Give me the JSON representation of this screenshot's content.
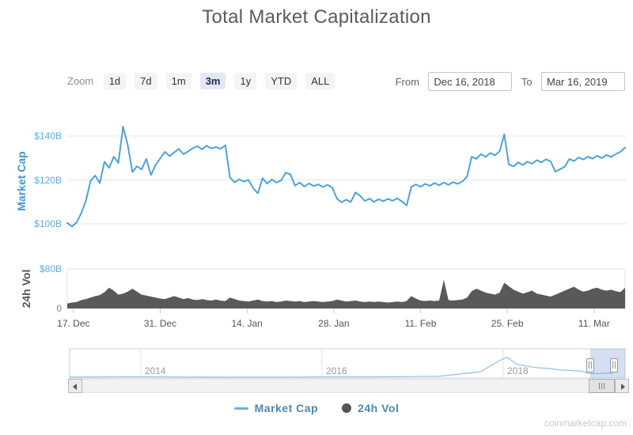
{
  "header": {
    "title": "Total Market Capitalization"
  },
  "controls": {
    "zoom_label": "Zoom",
    "zoom_buttons": [
      {
        "label": "1d",
        "selected": false
      },
      {
        "label": "7d",
        "selected": false
      },
      {
        "label": "1m",
        "selected": false
      },
      {
        "label": "3m",
        "selected": true
      },
      {
        "label": "1y",
        "selected": false
      },
      {
        "label": "YTD",
        "selected": false
      },
      {
        "label": "ALL",
        "selected": false
      }
    ],
    "from_label": "From",
    "from_value": "Dec 16, 2018",
    "to_label": "To",
    "to_value": "Mar 16, 2019"
  },
  "legend": {
    "items": [
      {
        "label": "Market Cap",
        "marker": "line",
        "color": "#6db0dd"
      },
      {
        "label": "24h Vol",
        "marker": "circle",
        "color": "#555555"
      }
    ]
  },
  "watermark": "coinmarketcap.com",
  "chart_data": {
    "type": "line",
    "title": "Total Market Capitalization",
    "x_range": {
      "from": "Dec 16, 2018",
      "to": "Mar 16, 2019",
      "days": 90,
      "sample_interval_days": 0.75
    },
    "x_ticks": [
      {
        "day": 1,
        "label": "17. Dec"
      },
      {
        "day": 15,
        "label": "31. Dec"
      },
      {
        "day": 29,
        "label": "14. Jan"
      },
      {
        "day": 43,
        "label": "28. Jan"
      },
      {
        "day": 57,
        "label": "11. Feb"
      },
      {
        "day": 71,
        "label": "25. Feb"
      },
      {
        "day": 85,
        "label": "11. Mar"
      }
    ],
    "series": [
      {
        "name": "Market Cap",
        "type": "line",
        "color": "#4da3d8",
        "axis": {
          "title": "Market Cap",
          "unit": "$B",
          "ylim": [
            97,
            146
          ],
          "ticks": [
            {
              "value": 100,
              "label": "$100B"
            },
            {
              "value": 120,
              "label": "$120B"
            },
            {
              "value": 140,
              "label": "$140B"
            }
          ]
        },
        "values_billions": [
          100.4,
          98.8,
          100.6,
          104.8,
          110.5,
          119.5,
          122.0,
          118.6,
          128.3,
          125.5,
          130.6,
          127.8,
          144.3,
          136.0,
          123.6,
          126.2,
          124.8,
          129.6,
          122.2,
          126.8,
          129.8,
          132.8,
          130.9,
          132.5,
          134.2,
          131.7,
          133.0,
          134.5,
          135.3,
          134.0,
          135.6,
          134.3,
          135.0,
          134.2,
          135.8,
          121.2,
          118.9,
          120.3,
          119.2,
          120.0,
          116.2,
          113.9,
          120.8,
          118.3,
          120.2,
          118.8,
          119.8,
          123.3,
          122.6,
          117.4,
          118.8,
          117.0,
          118.4,
          117.2,
          118.0,
          116.8,
          117.8,
          116.5,
          111.5,
          109.8,
          111.0,
          110.0,
          114.3,
          112.8,
          110.4,
          111.5,
          110.0,
          111.2,
          110.3,
          111.4,
          110.5,
          111.6,
          110.2,
          108.4,
          116.8,
          118.0,
          116.9,
          118.2,
          117.3,
          118.6,
          117.6,
          118.8,
          117.8,
          119.0,
          118.2,
          119.3,
          121.5,
          130.6,
          129.6,
          131.8,
          130.5,
          132.3,
          131.2,
          133.0,
          140.8,
          127.0,
          126.2,
          128.0,
          126.8,
          128.3,
          127.4,
          129.0,
          128.0,
          129.4,
          128.4,
          123.8,
          124.9,
          126.0,
          129.5,
          128.6,
          130.2,
          129.3,
          130.6,
          129.7,
          131.0,
          130.0,
          131.4,
          130.5,
          131.8,
          132.8,
          134.8
        ]
      },
      {
        "name": "24h Vol",
        "type": "area",
        "color": "#595959",
        "axis": {
          "title": "24h Vol",
          "unit": "$B",
          "ylim": [
            0,
            80
          ],
          "ticks": [
            {
              "value": 0,
              "label": "0"
            },
            {
              "value": 80,
              "label": "$80B"
            }
          ]
        },
        "values_billions": [
          10,
          12,
          13,
          17,
          19,
          22,
          25,
          27,
          33,
          42,
          36,
          28,
          30,
          34,
          40,
          34,
          28,
          26,
          24,
          22,
          20,
          19,
          22,
          25,
          22,
          19,
          21,
          18,
          17,
          19,
          17,
          16,
          18,
          16,
          15,
          22,
          19,
          16,
          15,
          14,
          16,
          18,
          15,
          14,
          15,
          13,
          14,
          16,
          15,
          14,
          15,
          13,
          14,
          15,
          14,
          13,
          14,
          15,
          18,
          16,
          14,
          15,
          16,
          14,
          13,
          14,
          13,
          14,
          13,
          12,
          13,
          14,
          13,
          15,
          25,
          20,
          16,
          15,
          16,
          15,
          16,
          58,
          17,
          16,
          17,
          18,
          22,
          35,
          40,
          36,
          32,
          30,
          28,
          32,
          52,
          45,
          38,
          34,
          30,
          33,
          36,
          30,
          28,
          26,
          24,
          28,
          32,
          36,
          40,
          44,
          38,
          34,
          36,
          40,
          42,
          38,
          36,
          38,
          35,
          33,
          42
        ]
      }
    ],
    "navigator": {
      "year_labels": [
        "2014",
        "2016",
        "2018"
      ],
      "selection": {
        "from": "Dec 16, 2018",
        "to": "Mar 16, 2019"
      },
      "all_time_preview_year_value_billions": [
        [
          2012.62,
          3
        ],
        [
          2013.2,
          8
        ],
        [
          2013.95,
          14
        ],
        [
          2014.5,
          8
        ],
        [
          2015.0,
          5
        ],
        [
          2015.6,
          5
        ],
        [
          2016.0,
          11
        ],
        [
          2016.5,
          13
        ],
        [
          2016.95,
          19
        ],
        [
          2017.3,
          35
        ],
        [
          2017.55,
          110
        ],
        [
          2017.75,
          170
        ],
        [
          2017.95,
          500
        ],
        [
          2018.04,
          620
        ],
        [
          2018.15,
          400
        ],
        [
          2018.35,
          300
        ],
        [
          2018.5,
          270
        ],
        [
          2018.65,
          220
        ],
        [
          2018.75,
          210
        ],
        [
          2018.88,
          180
        ],
        [
          2018.96,
          110
        ],
        [
          2019.04,
          115
        ],
        [
          2019.12,
          122
        ],
        [
          2019.21,
          132
        ]
      ]
    }
  }
}
